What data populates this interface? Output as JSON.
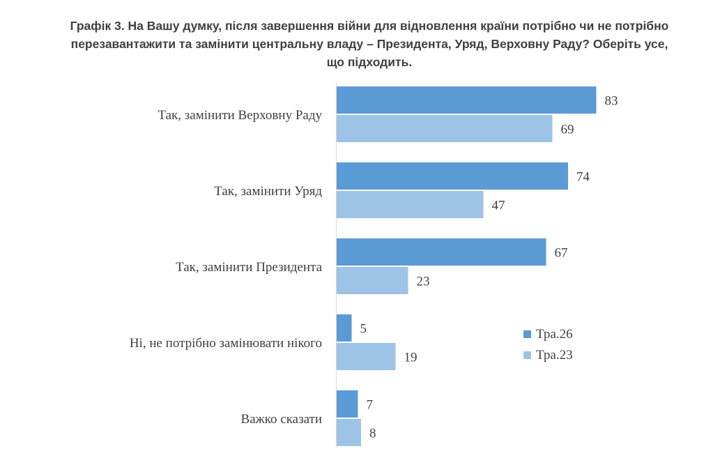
{
  "chart_data": {
    "type": "bar",
    "orientation": "horizontal",
    "title": "Графік 3. На Вашу думку, після завершення війни для відновлення країни потрібно чи не потрібно перезавантажити та замінити центральну владу – Президента, Уряд, Верховну Раду? Оберіть усе, що підходить.",
    "categories": [
      "Так, замінити Верховну Раду",
      "Так, замінити Уряд",
      "Так, замінити Президента",
      "Ні, не потрібно замінювати нікого",
      "Важко сказати"
    ],
    "series": [
      {
        "name": "Тра.26",
        "color": "#5b9bd5",
        "values": [
          83,
          74,
          67,
          5,
          7
        ]
      },
      {
        "name": "Тра.23",
        "color": "#9dc3e6",
        "values": [
          69,
          47,
          23,
          19,
          8
        ]
      }
    ],
    "xlim": [
      0,
      100
    ],
    "grid": false,
    "axis_line": true,
    "legend_position": "right"
  }
}
